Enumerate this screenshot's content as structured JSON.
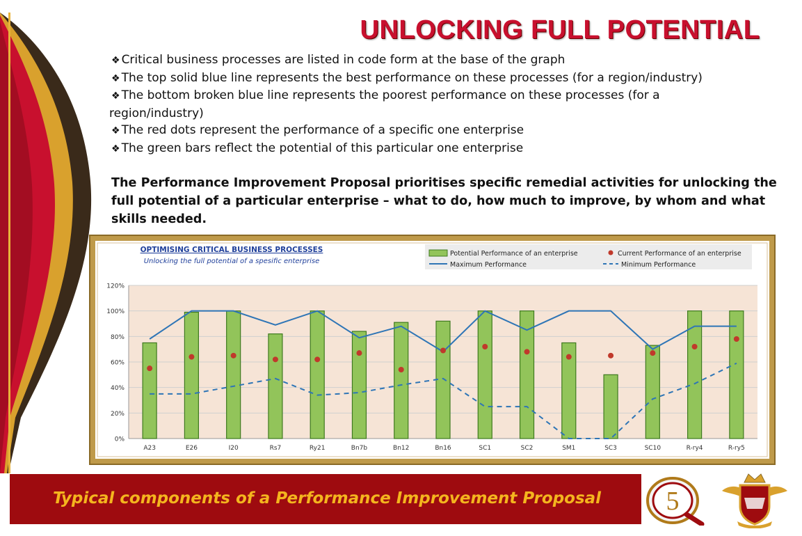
{
  "header": {
    "title": "UNLOCKING FULL POTENTIAL"
  },
  "bullets": [
    "Critical business processes are listed in code form at the base of the graph",
    "The top solid blue line represents the best performance on these processes (for  a region/industry)",
    "The bottom broken blue line represents the poorest performance on these processes (for  a",
    "The red dots represent the performance of a specific one enterprise",
    "The green bars reflect the potential of this particular one enterprise"
  ],
  "bullet_continuation": "region/industry)",
  "lead": "The Performance Improvement Proposal prioritises specific remedial activities for unlocking the full potential of a particular enterprise – what to do, how much to improve, by whom and what skills needed.",
  "footer": {
    "text": "Typical components of a Performance Improvement Proposal"
  },
  "badge": {
    "number": "5"
  },
  "colors": {
    "title_red": "#c8102e",
    "footer_red": "#9e0b0f",
    "footer_text": "#f4b51e",
    "bar_green": "#92c45a",
    "dot_red": "#c0392b",
    "line_blue": "#2e75b6",
    "plot_bg": "#f6e4d6"
  },
  "chart_data": {
    "type": "bar",
    "title": "OPTIMISING CRITICAL BUSINESS PROCESSES",
    "subtitle": "Unlocking the full potential of a spesific enterprise",
    "xlabel": "",
    "ylabel": "",
    "ylim": [
      0,
      120
    ],
    "yticks": [
      "0%",
      "20%",
      "40%",
      "60%",
      "80%",
      "100%",
      "120%"
    ],
    "legend_position": "top-right",
    "grid": true,
    "categories": [
      "A23",
      "E26",
      "I20",
      "Rs7",
      "Ry21",
      "Bn7b",
      "Bn12",
      "Bn16",
      "SC1",
      "SC2",
      "SM1",
      "SC3",
      "SC10",
      "R-ry4",
      "R-ry5"
    ],
    "series": [
      {
        "name": "Potential Performance of an enterprise",
        "kind": "bar",
        "values": [
          75,
          99,
          100,
          82,
          100,
          84,
          91,
          92,
          100,
          100,
          75,
          50,
          73,
          100,
          100
        ]
      },
      {
        "name": "Current Performance of an enterprise",
        "kind": "dots",
        "values": [
          55,
          64,
          65,
          62,
          62,
          67,
          54,
          69,
          72,
          68,
          64,
          65,
          67,
          72,
          78
        ]
      },
      {
        "name": "Maximum Performance",
        "kind": "line",
        "values": [
          78,
          100,
          100,
          89,
          100,
          79,
          88,
          68,
          100,
          85,
          100,
          100,
          70,
          88,
          88
        ]
      },
      {
        "name": "Minimum Performance",
        "kind": "dashed",
        "values": [
          35,
          35,
          41,
          47,
          34,
          36,
          42,
          47,
          25,
          25,
          0,
          0,
          31,
          43,
          59
        ]
      }
    ]
  }
}
